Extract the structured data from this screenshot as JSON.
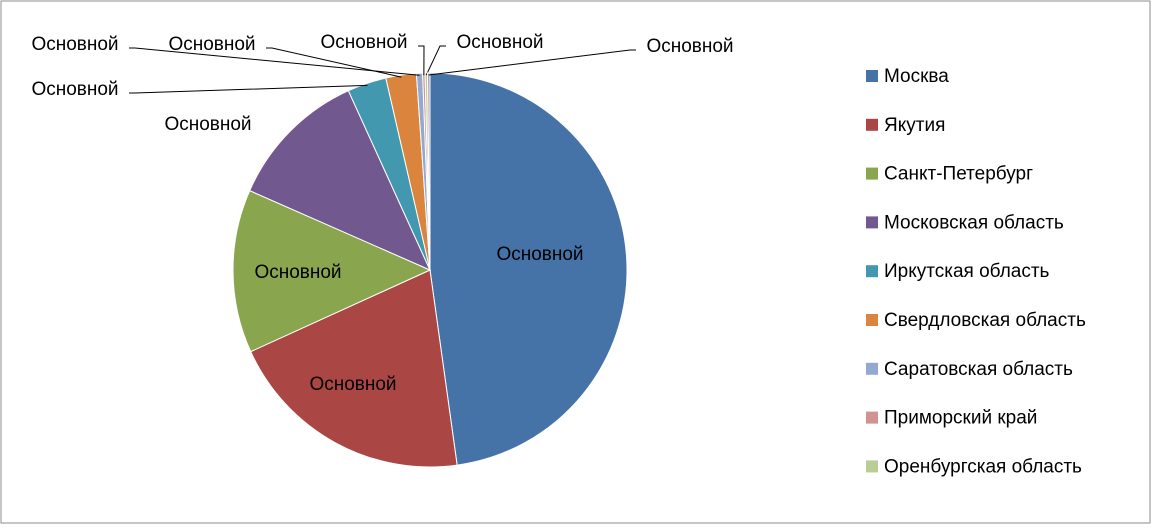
{
  "chart_data": {
    "type": "pie",
    "series_name": "Основной",
    "categories": [
      "Москва",
      "Якутия",
      "Санкт-Петербург",
      "Московская область",
      "Иркутская область",
      "Свердловская область",
      "Саратовская область",
      "Приморский край",
      "Оренбургская область",
      null
    ],
    "values": [
      47.8,
      20.4,
      13.4,
      11.6,
      3.2,
      2.5,
      0.5,
      0.2,
      0.2,
      0.2
    ],
    "colors": [
      "#4572A7",
      "#AA4643",
      "#89A54E",
      "#71588F",
      "#4198AF",
      "#DB843D",
      "#93A9CF",
      "#D19392",
      "#B9CD96",
      "#A99BBD"
    ],
    "legend": "right"
  }
}
